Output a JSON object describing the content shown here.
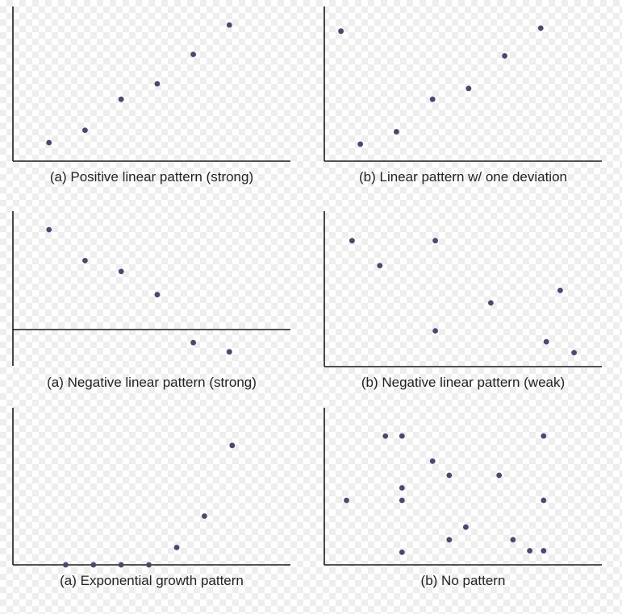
{
  "colors": {
    "point": "#4b4870",
    "axis": "#1a1a1a",
    "caption": "#222222"
  },
  "chart_data": [
    {
      "type": "scatter",
      "caption": "(a) Positive linear pattern (strong)",
      "title": "",
      "xlabel": "",
      "ylabel": "",
      "xlim": [
        0,
        10
      ],
      "ylim": [
        0,
        10
      ],
      "grid": false,
      "x": [
        1.3,
        2.6,
        3.9,
        5.2,
        6.5,
        7.8
      ],
      "y": [
        1.2,
        2.0,
        4.0,
        5.0,
        6.9,
        8.8
      ]
    },
    {
      "type": "scatter",
      "caption": "(b) Linear pattern w/ one deviation",
      "title": "",
      "xlabel": "",
      "ylabel": "",
      "xlim": [
        0,
        10
      ],
      "ylim": [
        0,
        10
      ],
      "grid": false,
      "x": [
        0.6,
        1.3,
        2.6,
        3.9,
        5.2,
        6.5,
        7.8
      ],
      "y": [
        8.4,
        1.1,
        1.9,
        4.0,
        4.7,
        6.8,
        8.6
      ]
    },
    {
      "type": "scatter",
      "caption": "(a) Negative linear pattern (strong)",
      "title": "",
      "xlabel": "",
      "ylabel": "",
      "xlim": [
        0,
        10
      ],
      "ylim": [
        -2.5,
        7.5
      ],
      "grid": false,
      "x": [
        1.3,
        2.6,
        3.9,
        5.2,
        6.5,
        7.8
      ],
      "y": [
        6.3,
        4.3,
        3.6,
        2.1,
        -1.0,
        -1.6
      ]
    },
    {
      "type": "scatter",
      "caption": "(b) Negative linear pattern (weak)",
      "title": "",
      "xlabel": "",
      "ylabel": "",
      "xlim": [
        0,
        10
      ],
      "ylim": [
        0,
        10
      ],
      "grid": false,
      "x": [
        1.0,
        2.0,
        4.0,
        4.0,
        6.0,
        8.0,
        8.5,
        9.0
      ],
      "y": [
        8.1,
        6.5,
        8.1,
        2.3,
        4.1,
        1.6,
        4.9,
        0.9
      ]
    },
    {
      "type": "scatter",
      "caption": "(a) Exponential growth pattern",
      "title": "",
      "xlabel": "",
      "ylabel": "",
      "xlim": [
        0,
        10
      ],
      "ylim": [
        0,
        10
      ],
      "grid": false,
      "x": [
        1.9,
        2.9,
        3.9,
        4.9,
        5.9,
        6.9,
        7.9
      ],
      "y": [
        0.0,
        0.0,
        0.0,
        0.0,
        1.1,
        3.1,
        7.6
      ]
    },
    {
      "type": "scatter",
      "caption": "(b) No pattern",
      "title": "",
      "xlabel": "",
      "ylabel": "",
      "xlim": [
        0,
        10
      ],
      "ylim": [
        0,
        10
      ],
      "grid": false,
      "x": [
        0.8,
        2.2,
        2.8,
        2.8,
        2.8,
        2.8,
        3.9,
        4.5,
        4.5,
        5.1,
        6.3,
        6.8,
        7.4,
        7.9,
        7.9,
        7.9
      ],
      "y": [
        4.1,
        8.2,
        8.2,
        4.9,
        4.1,
        0.8,
        6.6,
        5.7,
        1.6,
        2.4,
        5.7,
        1.6,
        0.9,
        8.2,
        4.1,
        0.9
      ]
    }
  ]
}
